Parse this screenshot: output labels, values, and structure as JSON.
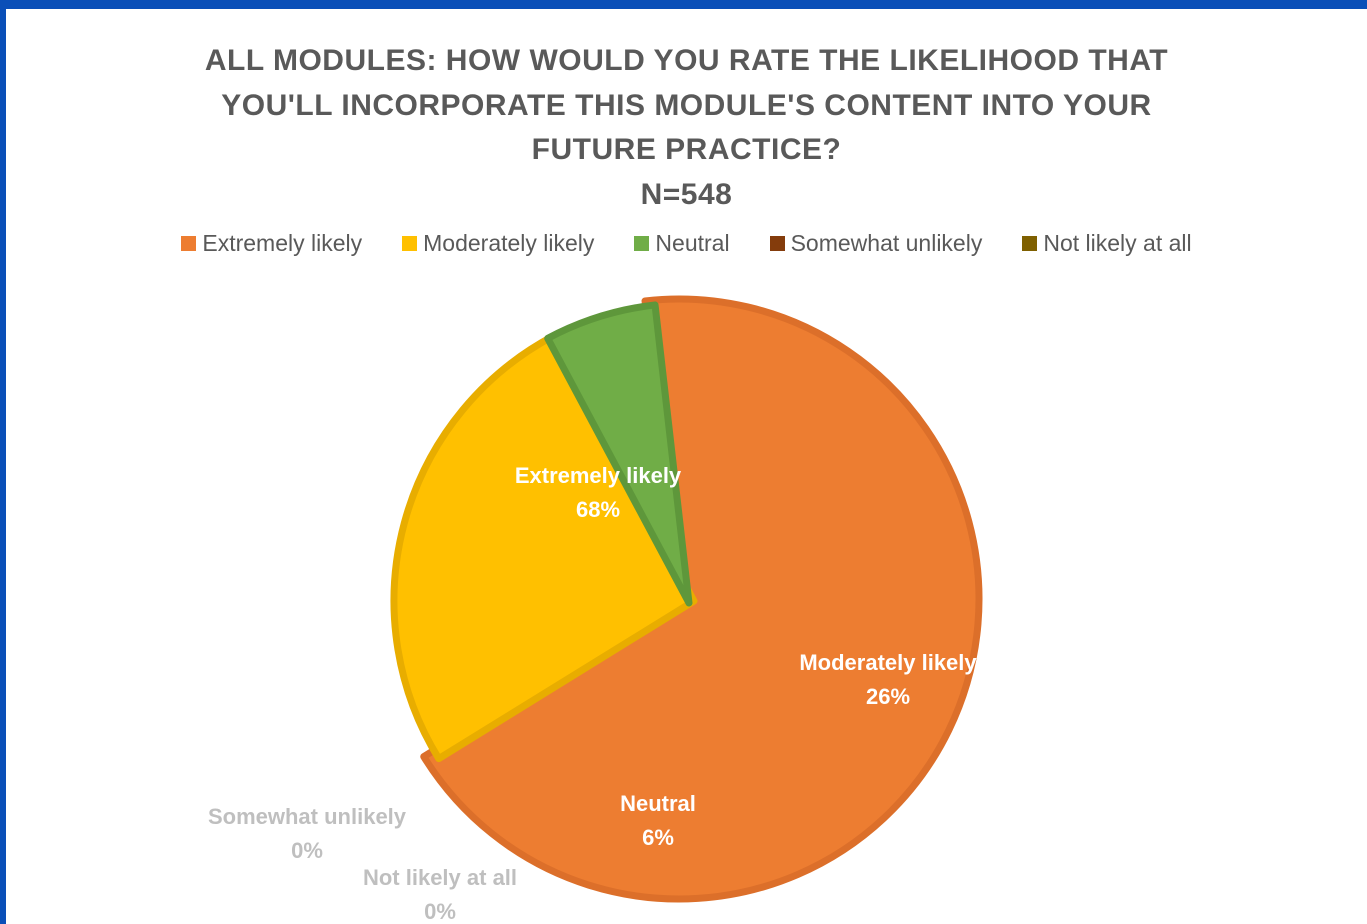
{
  "chart_data": {
    "type": "pie",
    "title_lines": [
      "ALL MODULES: HOW WOULD YOU RATE THE LIKELIHOOD THAT",
      "YOU'LL INCORPORATE THIS MODULE'S CONTENT INTO YOUR",
      "FUTURE PRACTICE?"
    ],
    "subtitle": "N=548",
    "legend_position": "top",
    "slices": [
      {
        "label": "Extremely likely",
        "value": 68,
        "display": "68%",
        "color": "#ed7d31",
        "edge": "#dc6f2a",
        "label_color": "#ffffff"
      },
      {
        "label": "Moderately likely",
        "value": 26,
        "display": "26%",
        "color": "#ffc000",
        "edge": "#e8ad00",
        "label_color": "#ffffff"
      },
      {
        "label": "Neutral",
        "value": 6,
        "display": "6%",
        "color": "#70ad47",
        "edge": "#5e973b",
        "label_color": "#ffffff"
      },
      {
        "label": "Somewhat unlikely",
        "value": 0,
        "display": "0%",
        "color": "#843c0c",
        "edge": "#843c0c",
        "label_color": "#bfbfbf"
      },
      {
        "label": "Not likely at all",
        "value": 0,
        "display": "0%",
        "color": "#7f6000",
        "edge": "#7f6000",
        "label_color": "#bfbfbf"
      }
    ]
  }
}
